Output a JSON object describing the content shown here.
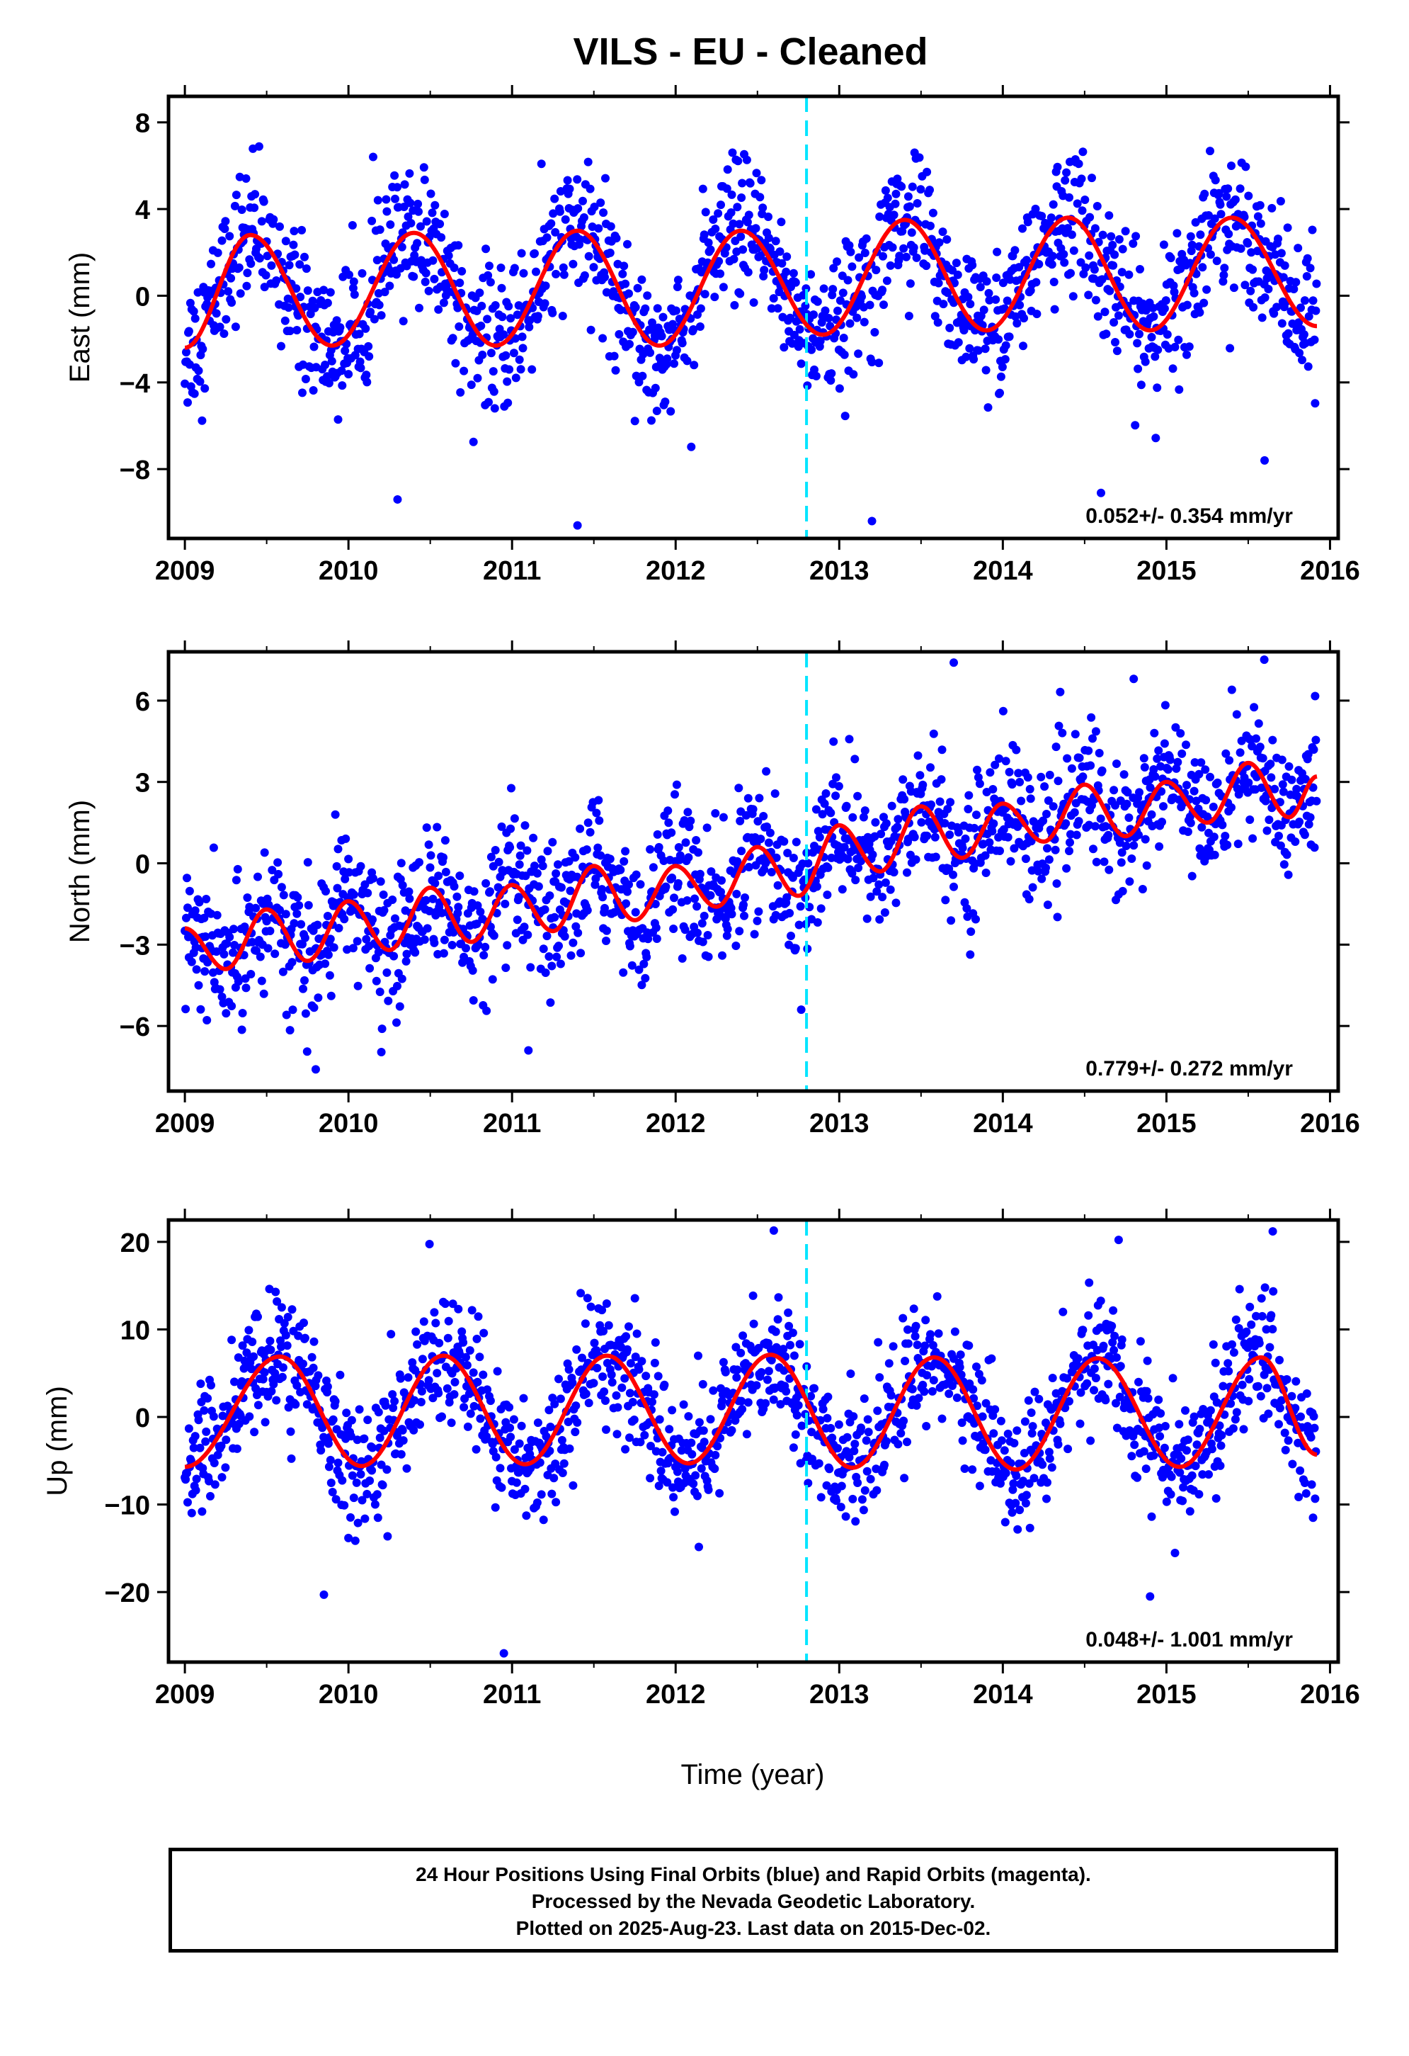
{
  "title": "VILS  - EU - Cleaned",
  "xlabel": "Time (year)",
  "caption": {
    "line1": "24 Hour Positions Using Final Orbits (blue) and Rapid Orbits (magenta).",
    "line2": "Processed by the Nevada Geodetic Laboratory.",
    "line3": "Plotted on 2025-Aug-23. Last data on 2015-Dec-02."
  },
  "colors": {
    "points": "#0000ff",
    "fit": "#ff0000",
    "event": "#00e5ff",
    "axes": "#000000"
  },
  "chart_data": [
    {
      "type": "scatter",
      "component": "East",
      "ylabel": "East (mm)",
      "xlim": [
        2008.9,
        2016.05
      ],
      "ylim": [
        -11.2,
        9.2
      ],
      "yticks": [
        8,
        4,
        0,
        -4,
        -8
      ],
      "xticks": [
        2009,
        2010,
        2011,
        2012,
        2013,
        2014,
        2015,
        2016
      ],
      "rate_label": "0.052+/- 0.354 mm/yr",
      "event_line_x": 2012.8,
      "fit": {
        "x": [
          2009.0,
          2009.4,
          2009.9,
          2010.4,
          2010.9,
          2011.4,
          2011.9,
          2012.4,
          2012.9,
          2013.4,
          2013.9,
          2014.4,
          2014.9,
          2015.4,
          2015.92
        ],
        "y": [
          -2.4,
          2.8,
          -2.3,
          2.9,
          -2.3,
          3.0,
          -2.3,
          3.0,
          -1.8,
          3.5,
          -1.6,
          3.6,
          -1.6,
          3.6,
          -1.4
        ]
      },
      "scatter": {
        "amplitude": 2.6,
        "center": 0.1,
        "noise": 1.6,
        "outliers": [
          [
            2010.3,
            -9.4
          ],
          [
            2011.4,
            -10.6
          ],
          [
            2013.2,
            -10.4
          ],
          [
            2014.6,
            -9.1
          ],
          [
            2015.6,
            -7.6
          ]
        ]
      }
    },
    {
      "type": "scatter",
      "component": "North",
      "ylabel": "North (mm)",
      "xlim": [
        2008.9,
        2016.05
      ],
      "ylim": [
        -8.4,
        7.8
      ],
      "yticks": [
        6,
        3,
        0,
        -3,
        -6
      ],
      "xticks": [
        2009,
        2010,
        2011,
        2012,
        2013,
        2014,
        2015,
        2016
      ],
      "rate_label": "0.779+/- 0.272 mm/yr",
      "event_line_x": 2012.8,
      "fit": {
        "x": [
          2009.0,
          2009.25,
          2009.5,
          2009.75,
          2010.0,
          2010.25,
          2010.5,
          2010.75,
          2011.0,
          2011.25,
          2011.5,
          2011.75,
          2012.0,
          2012.25,
          2012.5,
          2012.75,
          2013.0,
          2013.25,
          2013.5,
          2013.75,
          2014.0,
          2014.25,
          2014.5,
          2014.75,
          2015.0,
          2015.25,
          2015.5,
          2015.75,
          2015.92
        ],
        "y": [
          -2.4,
          -3.9,
          -1.7,
          -3.6,
          -1.4,
          -3.2,
          -0.9,
          -2.9,
          -0.8,
          -2.5,
          -0.1,
          -2.1,
          -0.1,
          -1.6,
          0.6,
          -1.2,
          1.4,
          -0.3,
          2.1,
          0.2,
          2.2,
          0.8,
          2.9,
          1.0,
          3.0,
          1.5,
          3.7,
          1.7,
          3.2
        ]
      },
      "scatter": {
        "amplitude": 0.0,
        "center": 0.0,
        "noise": 1.25,
        "outliers": [
          [
            2009.8,
            -7.6
          ],
          [
            2011.1,
            -6.9
          ],
          [
            2013.7,
            7.4
          ],
          [
            2014.8,
            6.8
          ],
          [
            2015.4,
            6.4
          ]
        ]
      }
    },
    {
      "type": "scatter",
      "component": "Up",
      "ylabel": "Up (mm)",
      "xlim": [
        2008.9,
        2016.05
      ],
      "ylim": [
        -28.0,
        22.5
      ],
      "yticks": [
        20,
        10,
        0,
        -10,
        -20
      ],
      "xticks": [
        2009,
        2010,
        2011,
        2012,
        2013,
        2014,
        2015,
        2016
      ],
      "rate_label": "0.048+/- 1.001 mm/yr",
      "event_line_x": 2012.8,
      "fit": {
        "x": [
          2009.0,
          2009.58,
          2010.08,
          2010.58,
          2011.08,
          2011.58,
          2012.08,
          2012.58,
          2013.08,
          2013.58,
          2014.08,
          2014.58,
          2015.08,
          2015.58,
          2015.92
        ],
        "y": [
          -5.7,
          6.9,
          -5.6,
          7.0,
          -5.4,
          7.0,
          -5.3,
          7.1,
          -5.8,
          6.8,
          -6.0,
          6.7,
          -5.7,
          6.8,
          -4.3
        ]
      },
      "scatter": {
        "amplitude": 6.0,
        "center": 0.0,
        "noise": 3.6,
        "outliers": [
          [
            2009.85,
            -20.3
          ],
          [
            2010.95,
            -27.0
          ],
          [
            2012.6,
            21.3
          ],
          [
            2014.9,
            -20.5
          ],
          [
            2015.65,
            21.2
          ]
        ]
      }
    }
  ]
}
